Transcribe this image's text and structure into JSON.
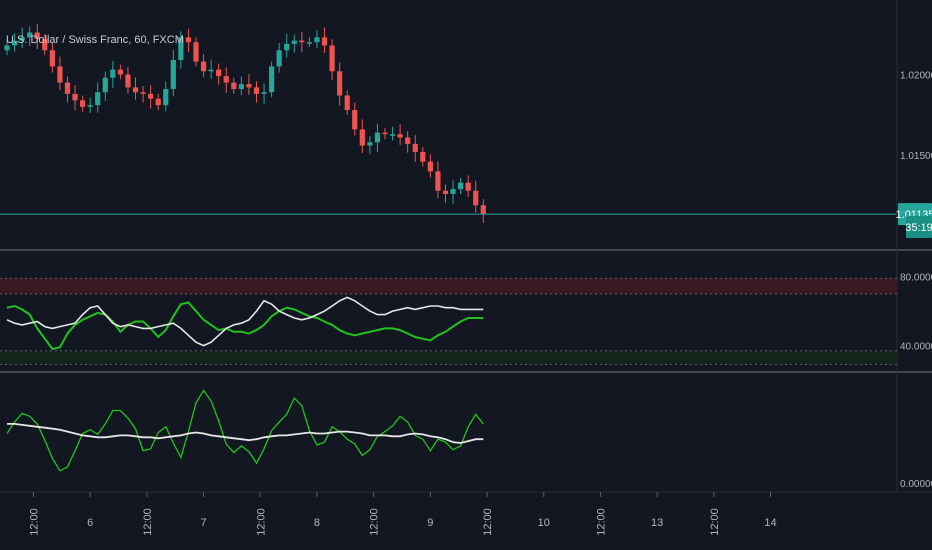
{
  "symbol_title": "U.S. Dollar / Swiss Franc, 60, FXCM",
  "price_label": "1.01135",
  "countdown_label": "35:19",
  "colors": {
    "background": "#131722",
    "up": "#26a69a",
    "down": "#ef5350",
    "last_price_line": "#26a69a",
    "osc_green": "#21c21e",
    "osc_white": "#e6e6e6",
    "upper_zone": "#3a1a22",
    "lower_zone": "#13251a"
  },
  "chart_data": [
    {
      "type": "candlestick",
      "title": "U.S. Dollar / Swiss Franc, 60, FXCM",
      "ylim": [
        1.0095,
        1.0235
      ],
      "y_ticks": [
        {
          "value": 1.02,
          "label": "1.02000"
        },
        {
          "value": 1.015,
          "label": "1.01500"
        }
      ],
      "last_price": 1.01135,
      "close_series": [
        1.0218,
        1.0221,
        1.0223,
        1.0226,
        1.0222,
        1.0215,
        1.0205,
        1.0195,
        1.0188,
        1.0184,
        1.018,
        1.0181,
        1.0189,
        1.0198,
        1.0203,
        1.02,
        1.0192,
        1.0189,
        1.0188,
        1.0185,
        1.0181,
        1.0191,
        1.0209,
        1.0223,
        1.022,
        1.0208,
        1.0202,
        1.0203,
        1.0199,
        1.0195,
        1.0191,
        1.0194,
        1.0192,
        1.0188,
        1.0189,
        1.0205,
        1.0215,
        1.0219,
        1.0221,
        1.022,
        1.022,
        1.0223,
        1.0218,
        1.0202,
        1.0187,
        1.0178,
        1.0166,
        1.0156,
        1.0158,
        1.0164,
        1.0163,
        1.0163,
        1.0161,
        1.0157,
        1.0152,
        1.0146,
        1.014,
        1.0128,
        1.0126,
        1.0129,
        1.0133,
        1.0128,
        1.0119,
        1.01135
      ]
    },
    {
      "type": "line",
      "ylim": [
        27,
        92
      ],
      "y_ticks": [
        {
          "value": 80,
          "label": "80.00000"
        },
        {
          "value": 40,
          "label": "40.00000"
        }
      ],
      "upper_band": [
        70,
        79
      ],
      "lower_band": [
        29,
        37
      ],
      "series": [
        {
          "color": "#21c21e",
          "values": [
            62,
            63,
            61,
            58,
            50,
            44,
            38,
            39,
            47,
            52,
            55,
            57,
            59,
            58,
            54,
            48,
            52,
            54,
            54,
            50,
            45,
            49,
            57,
            64,
            65,
            60,
            55,
            52,
            49,
            50,
            48,
            48,
            47,
            49,
            52,
            57,
            60,
            62,
            61,
            59,
            57,
            56,
            54,
            52,
            49,
            47,
            46,
            47,
            48,
            49,
            50,
            50,
            49,
            47,
            45,
            44,
            43,
            46,
            48,
            51,
            54,
            56,
            56,
            56
          ]
        },
        {
          "color": "#e6e6e6",
          "values": [
            55,
            53,
            52,
            53,
            54,
            51,
            50,
            51,
            52,
            53,
            58,
            62,
            63,
            58,
            53,
            51,
            52,
            51,
            50,
            50,
            51,
            52,
            53,
            50,
            46,
            42,
            40,
            42,
            46,
            50,
            52,
            53,
            55,
            60,
            66,
            64,
            60,
            58,
            56,
            55,
            56,
            58,
            60,
            63,
            66,
            68,
            66,
            63,
            60,
            58,
            58,
            60,
            61,
            62,
            61,
            62,
            63,
            63,
            62,
            62,
            61,
            61,
            61,
            61
          ]
        }
      ]
    },
    {
      "type": "line",
      "ylim": [
        -0.5,
        11
      ],
      "y_ticks": [
        {
          "value": 0,
          "label": "0.00000"
        }
      ],
      "series": [
        {
          "color": "#21c21e",
          "values": [
            5.2,
            6.4,
            7.3,
            7.0,
            6.2,
            4.5,
            2.6,
            1.3,
            1.7,
            3.4,
            5.2,
            5.6,
            5.1,
            6.2,
            7.6,
            7.6,
            6.8,
            5.7,
            3.4,
            3.6,
            5.3,
            5.9,
            4.2,
            2.7,
            5.4,
            8.4,
            9.7,
            8.6,
            6.5,
            4.1,
            3.2,
            3.9,
            3.3,
            2.1,
            3.6,
            5.5,
            6.4,
            7.2,
            8.9,
            8.1,
            5.5,
            4.0,
            4.3,
            5.9,
            5.4,
            4.6,
            4.1,
            2.9,
            3.5,
            4.9,
            5.4,
            6.0,
            7.0,
            6.4,
            5.0,
            4.6,
            3.4,
            4.6,
            4.3,
            3.5,
            3.9,
            5.9,
            7.2,
            6.2
          ]
        },
        {
          "color": "#e6e6e6",
          "values": [
            6.2,
            6.2,
            6.1,
            6.0,
            5.9,
            5.8,
            5.7,
            5.6,
            5.4,
            5.2,
            5.0,
            4.9,
            4.8,
            4.8,
            4.9,
            5.0,
            5.0,
            4.9,
            4.8,
            4.8,
            4.7,
            4.8,
            4.9,
            5.0,
            5.2,
            5.3,
            5.2,
            5.0,
            4.9,
            4.8,
            4.7,
            4.6,
            4.5,
            4.6,
            4.8,
            4.9,
            5.0,
            5.0,
            5.1,
            5.2,
            5.3,
            5.2,
            5.2,
            5.3,
            5.4,
            5.4,
            5.3,
            5.2,
            5.0,
            5.0,
            5.0,
            4.9,
            4.9,
            5.1,
            5.2,
            5.1,
            4.9,
            4.8,
            4.6,
            4.3,
            4.2,
            4.4,
            4.6,
            4.6
          ]
        }
      ]
    }
  ],
  "x_axis": {
    "tick_labels": [
      "12:00",
      "6",
      "12:00",
      "7",
      "12:00",
      "8",
      "12:00",
      "9",
      "12:00",
      "10",
      "12:00",
      "13",
      "12:00",
      "14"
    ],
    "tick_bar_index": [
      3.5,
      11,
      18.5,
      26,
      33.5,
      41,
      48.5,
      56,
      63.5,
      71,
      78.5,
      86,
      93.5,
      101
    ]
  }
}
